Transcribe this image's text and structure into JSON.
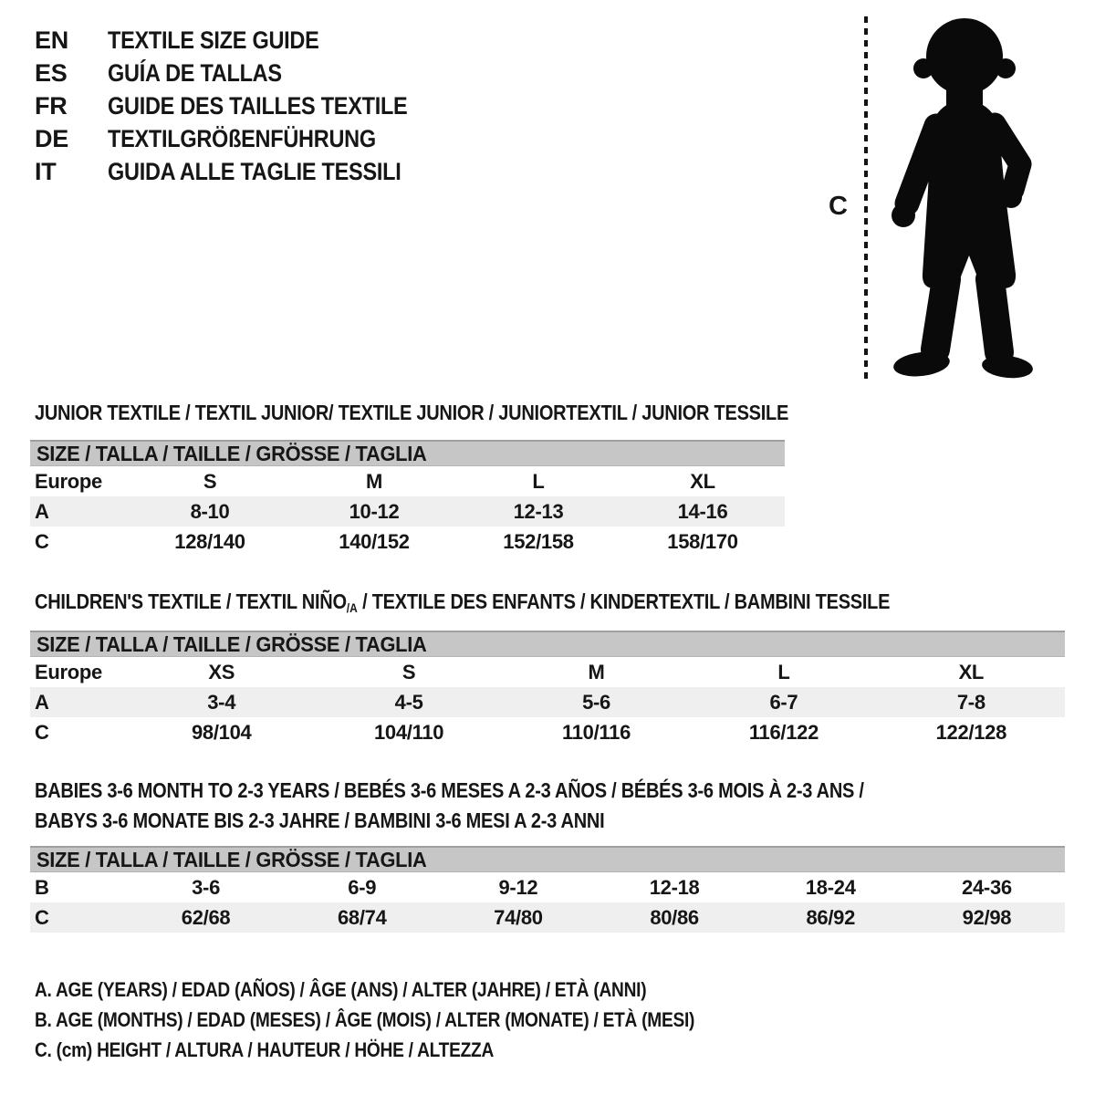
{
  "figure": {
    "measure_label": "C",
    "silhouette": "toddler-standing"
  },
  "colors": {
    "text": "#161616",
    "size_bar_bg": "#c6c6c6",
    "row_shade": "#efefef",
    "silhouette": "#0a0a0a"
  },
  "languages": [
    {
      "code": "EN",
      "title": "TEXTILE SIZE GUIDE"
    },
    {
      "code": "ES",
      "title": "GUÍA DE TALLAS"
    },
    {
      "code": "FR",
      "title": "GUIDE DES TAILLES TEXTILE"
    },
    {
      "code": "DE",
      "title": "TEXTILGRÖßENFÜHRUNG"
    },
    {
      "code": "IT",
      "title": "GUIDA ALLE TAGLIE TESSILI"
    }
  ],
  "sections": [
    {
      "id": "junior",
      "title": "JUNIOR TEXTILE / TEXTIL JUNIOR/ TEXTILE JUNIOR / JUNIORTEXTIL / JUNIOR TESSILE",
      "size_header": "SIZE / TALLA / TAILLE / GRÖSSE / TAGLIA",
      "rows": [
        {
          "label": "Europe",
          "shade": false,
          "values": [
            "S",
            "M",
            "L",
            "XL"
          ]
        },
        {
          "label": "A",
          "shade": true,
          "values": [
            "8-10",
            "10-12",
            "12-13",
            "14-16"
          ]
        },
        {
          "label": "C",
          "shade": false,
          "values": [
            "128/140",
            "140/152",
            "152/158",
            "158/170"
          ]
        }
      ]
    },
    {
      "id": "children",
      "title_parts": [
        "CHILDREN'S TEXTILE / TEXTIL NIÑO",
        "/A",
        " / TEXTILE DES ENFANTS / KINDERTEXTIL / BAMBINI TESSILE"
      ],
      "size_header": "SIZE / TALLA / TAILLE / GRÖSSE / TAGLIA",
      "rows": [
        {
          "label": "Europe",
          "shade": false,
          "values": [
            "XS",
            "S",
            "M",
            "L",
            "XL"
          ]
        },
        {
          "label": "A",
          "shade": true,
          "values": [
            "3-4",
            "4-5",
            "5-6",
            "6-7",
            "7-8"
          ]
        },
        {
          "label": "C",
          "shade": false,
          "values": [
            "98/104",
            "104/110",
            "110/116",
            "116/122",
            "122/128"
          ]
        }
      ]
    },
    {
      "id": "babies",
      "title_lines": [
        "BABIES 3-6 MONTH TO 2-3 YEARS / BEBÉS 3-6 MESES A 2-3 AÑOS / BÉBÉS 3-6 MOIS À 2-3 ANS /",
        "BABYS 3-6 MONATE BIS 2-3 JAHRE / BAMBINI 3-6 MESI A 2-3 ANNI"
      ],
      "size_header": "SIZE / TALLA / TAILLE / GRÖSSE / TAGLIA",
      "rows": [
        {
          "label": "B",
          "shade": false,
          "values": [
            "3-6",
            "6-9",
            "9-12",
            "12-18",
            "18-24",
            "24-36"
          ]
        },
        {
          "label": "C",
          "shade": true,
          "values": [
            "62/68",
            "68/74",
            "74/80",
            "80/86",
            "86/92",
            "92/98"
          ]
        }
      ]
    }
  ],
  "footnotes": [
    "A. AGE (YEARS) / EDAD (AÑOS) / ÂGE (ANS) / ALTER (JAHRE) / ETÀ (ANNI)",
    "B. AGE (MONTHS) / EDAD (MESES) / ÂGE (MOIS) / ALTER (MONATE) / ETÀ (MESI)",
    "C. (cm) HEIGHT / ALTURA / HAUTEUR / HÖHE / ALTEZZA"
  ]
}
